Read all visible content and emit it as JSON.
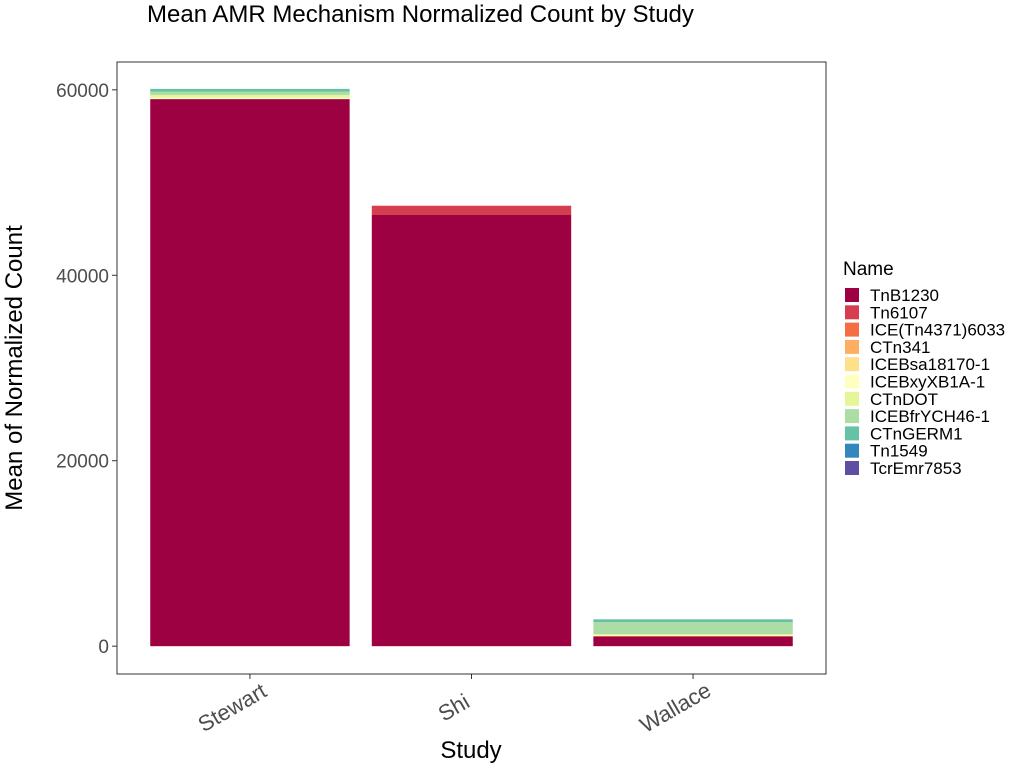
{
  "chart_data": {
    "type": "bar",
    "stacked": true,
    "title": "Mean AMR Mechanism Normalized Count by Study",
    "xlabel": "Study",
    "ylabel": "Mean of Normalized Count",
    "categories": [
      "Stewart",
      "Shi",
      "Wallace"
    ],
    "ylim": [
      -3000,
      63000
    ],
    "yticks": [
      0,
      20000,
      40000,
      60000
    ],
    "yticks_labels": [
      "0",
      "20000",
      "40000",
      "60000"
    ],
    "grid": false,
    "legend": {
      "title": "Name",
      "position": "right"
    },
    "series": [
      {
        "name": "TnB1230",
        "color": "#9E0142",
        "values": [
          59000,
          46500,
          1050
        ]
      },
      {
        "name": "Tn6107",
        "color": "#D53E4F",
        "values": [
          0,
          1000,
          0
        ]
      },
      {
        "name": "ICE(Tn4371)6033",
        "color": "#F46D43",
        "values": [
          0,
          0,
          0
        ]
      },
      {
        "name": "CTn341",
        "color": "#FDAE61",
        "values": [
          0,
          0,
          50
        ]
      },
      {
        "name": "ICEBsa18170-1",
        "color": "#FEE08B",
        "values": [
          0,
          0,
          0
        ]
      },
      {
        "name": "ICEBxyXB1A-1",
        "color": "#FFFFBF",
        "values": [
          150,
          0,
          100
        ]
      },
      {
        "name": "CTnDOT",
        "color": "#E6F598",
        "values": [
          300,
          0,
          100
        ]
      },
      {
        "name": "ICEBfrYCH46-1",
        "color": "#ABDDA4",
        "values": [
          350,
          0,
          1300
        ]
      },
      {
        "name": "CTnGERM1",
        "color": "#66C2A5",
        "values": [
          300,
          0,
          300
        ]
      },
      {
        "name": "Tn1549",
        "color": "#3288BD",
        "values": [
          0,
          0,
          0
        ]
      },
      {
        "name": "TcrEmr7853",
        "color": "#5E4FA2",
        "values": [
          0,
          0,
          0
        ]
      }
    ]
  }
}
